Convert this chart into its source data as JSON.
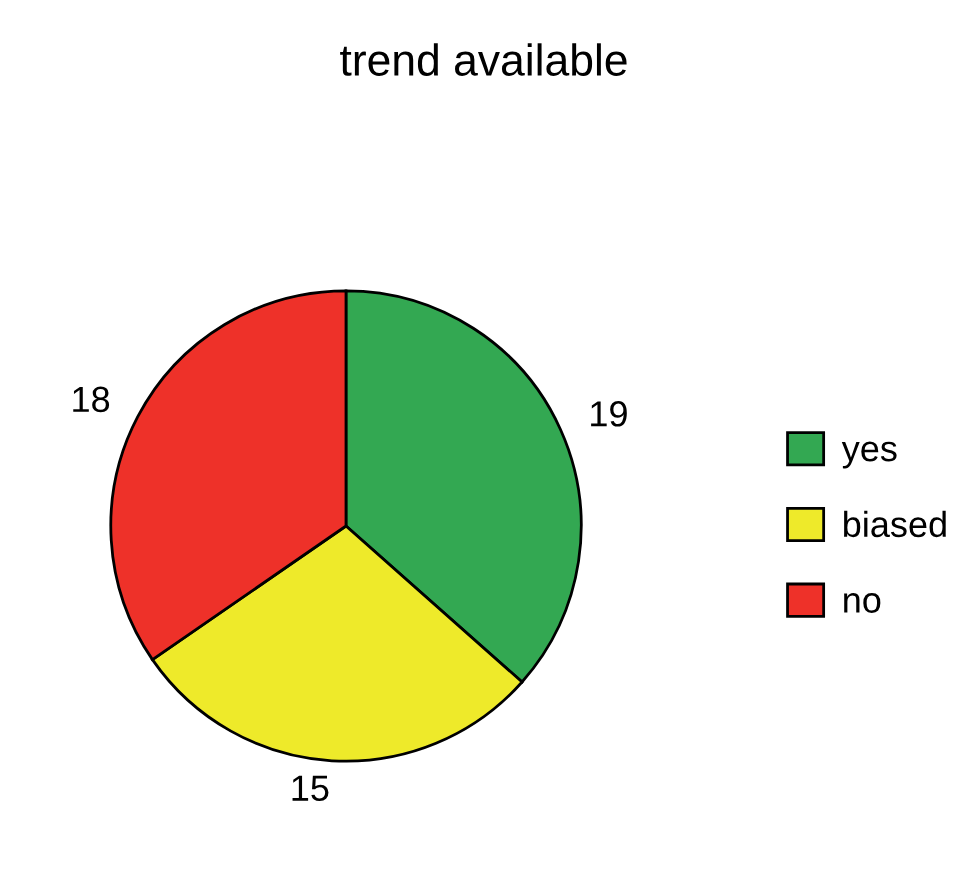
{
  "chart_data": {
    "type": "pie",
    "title": "trend available",
    "categories": [
      "yes",
      "biased",
      "no"
    ],
    "values": [
      19,
      15,
      18
    ],
    "colors": [
      "#33a852",
      "#eeea2a",
      "#ee3129"
    ],
    "data_labels": true,
    "legend": "right"
  }
}
